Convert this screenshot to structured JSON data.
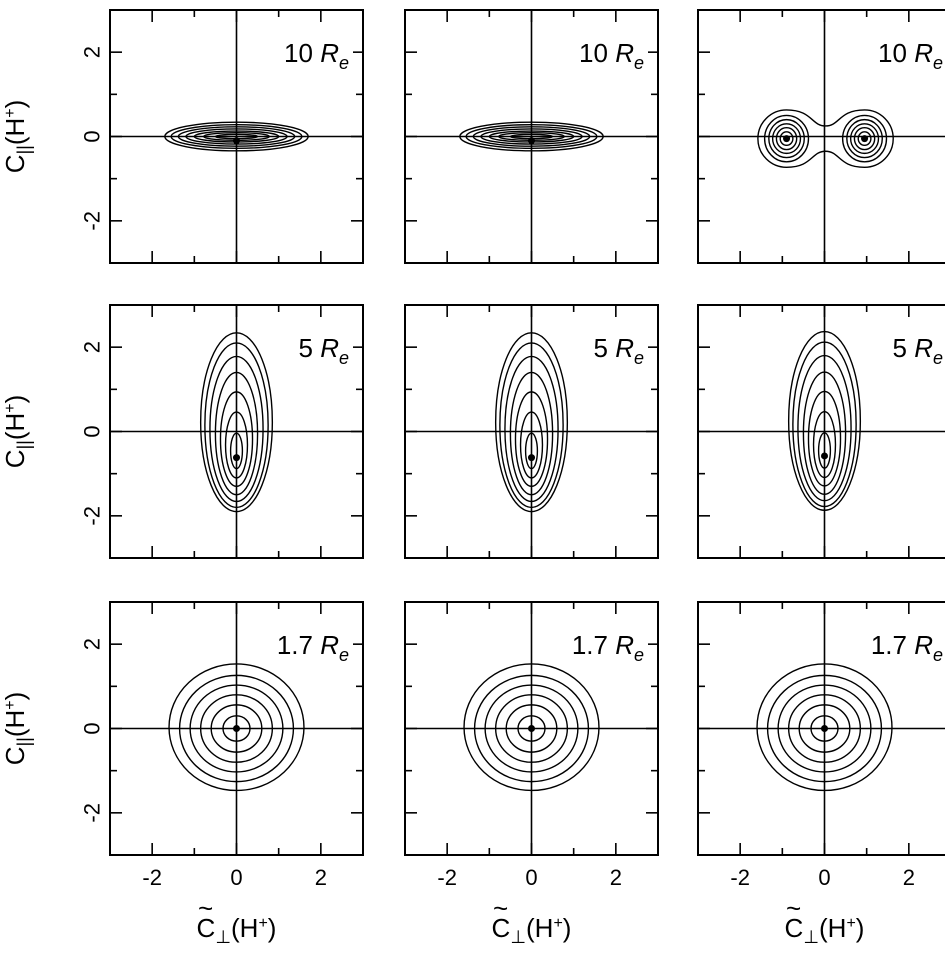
{
  "chart_data": [
    {
      "type": "contour",
      "row": 0,
      "col": 0,
      "distance_label": "10",
      "distance_unit": "R",
      "distance_sub": "e",
      "xlim": [
        -3,
        3
      ],
      "ylim": [
        -3,
        3
      ],
      "peak": [
        0,
        -0.1
      ],
      "shape": "disk",
      "contours": [
        {
          "rx": 1.7,
          "ry": 0.34
        },
        {
          "rx": 1.55,
          "ry": 0.28
        },
        {
          "rx": 1.38,
          "ry": 0.23
        },
        {
          "rx": 1.2,
          "ry": 0.18
        },
        {
          "rx": 1.0,
          "ry": 0.13
        },
        {
          "rx": 0.78,
          "ry": 0.09
        },
        {
          "rx": 0.5,
          "ry": 0.05
        }
      ]
    },
    {
      "type": "contour",
      "row": 0,
      "col": 1,
      "distance_label": "10",
      "distance_unit": "R",
      "distance_sub": "e",
      "xlim": [
        -3,
        3
      ],
      "ylim": [
        -3,
        3
      ],
      "peak": [
        0,
        -0.1
      ],
      "shape": "disk",
      "contours": [
        {
          "rx": 1.7,
          "ry": 0.34
        },
        {
          "rx": 1.55,
          "ry": 0.28
        },
        {
          "rx": 1.38,
          "ry": 0.23
        },
        {
          "rx": 1.2,
          "ry": 0.18
        },
        {
          "rx": 1.0,
          "ry": 0.13
        },
        {
          "rx": 0.78,
          "ry": 0.09
        },
        {
          "rx": 0.5,
          "ry": 0.05
        }
      ]
    },
    {
      "type": "contour",
      "row": 0,
      "col": 2,
      "distance_label": "10",
      "distance_unit": "R",
      "distance_sub": "e",
      "xlim": [
        -3,
        3
      ],
      "ylim": [
        -3,
        3
      ],
      "peaks": [
        [
          -0.9,
          -0.05
        ],
        [
          0.95,
          -0.05
        ]
      ],
      "shape": "double",
      "contours": [
        {
          "rx": 0.52,
          "ry": 0.55
        },
        {
          "rx": 0.42,
          "ry": 0.45
        },
        {
          "rx": 0.33,
          "ry": 0.35
        },
        {
          "rx": 0.24,
          "ry": 0.26
        },
        {
          "rx": 0.15,
          "ry": 0.16
        }
      ]
    },
    {
      "type": "contour",
      "row": 1,
      "col": 0,
      "distance_label": "5",
      "distance_unit": "R",
      "distance_sub": "e",
      "xlim": [
        -3,
        3
      ],
      "ylim": [
        -3,
        3
      ],
      "peak": [
        0,
        -0.62
      ],
      "shape": "elongated",
      "contours": [
        {
          "rx": 0.85,
          "ry": 2.12,
          "cy": 0.22
        },
        {
          "rx": 0.75,
          "ry": 1.95,
          "cy": 0.15
        },
        {
          "rx": 0.63,
          "ry": 1.72,
          "cy": 0.06
        },
        {
          "rx": 0.5,
          "ry": 1.45,
          "cy": -0.05
        },
        {
          "rx": 0.38,
          "ry": 1.12,
          "cy": -0.18
        },
        {
          "rx": 0.26,
          "ry": 0.78,
          "cy": -0.32
        },
        {
          "rx": 0.14,
          "ry": 0.42,
          "cy": -0.46
        }
      ]
    },
    {
      "type": "contour",
      "row": 1,
      "col": 1,
      "distance_label": "5",
      "distance_unit": "R",
      "distance_sub": "e",
      "xlim": [
        -3,
        3
      ],
      "ylim": [
        -3,
        3
      ],
      "peak": [
        0,
        -0.62
      ],
      "shape": "elongated",
      "contours": [
        {
          "rx": 0.85,
          "ry": 2.12,
          "cy": 0.22
        },
        {
          "rx": 0.75,
          "ry": 1.95,
          "cy": 0.15
        },
        {
          "rx": 0.63,
          "ry": 1.72,
          "cy": 0.06
        },
        {
          "rx": 0.5,
          "ry": 1.45,
          "cy": -0.05
        },
        {
          "rx": 0.38,
          "ry": 1.12,
          "cy": -0.18
        },
        {
          "rx": 0.26,
          "ry": 0.78,
          "cy": -0.32
        },
        {
          "rx": 0.14,
          "ry": 0.42,
          "cy": -0.46
        }
      ]
    },
    {
      "type": "contour",
      "row": 1,
      "col": 2,
      "distance_label": "5",
      "distance_unit": "R",
      "distance_sub": "e",
      "xlim": [
        -3,
        3
      ],
      "ylim": [
        -3,
        3
      ],
      "peak": [
        0,
        -0.58
      ],
      "shape": "elongated",
      "contours": [
        {
          "rx": 0.85,
          "ry": 2.12,
          "cy": 0.25
        },
        {
          "rx": 0.75,
          "ry": 1.95,
          "cy": 0.17
        },
        {
          "rx": 0.63,
          "ry": 1.72,
          "cy": 0.08
        },
        {
          "rx": 0.5,
          "ry": 1.45,
          "cy": -0.04
        },
        {
          "rx": 0.38,
          "ry": 1.12,
          "cy": -0.17
        },
        {
          "rx": 0.26,
          "ry": 0.78,
          "cy": -0.31
        },
        {
          "rx": 0.14,
          "ry": 0.42,
          "cy": -0.45
        }
      ]
    },
    {
      "type": "contour",
      "row": 2,
      "col": 0,
      "distance_label": "1.7",
      "distance_unit": "R",
      "distance_sub": "e",
      "xlim": [
        -3,
        3
      ],
      "ylim": [
        -3,
        3
      ],
      "peak": [
        0,
        0
      ],
      "shape": "round",
      "contours": [
        {
          "rx": 1.6,
          "ry": 1.5,
          "cy": 0.03
        },
        {
          "rx": 1.35,
          "ry": 1.26
        },
        {
          "rx": 1.1,
          "ry": 1.03
        },
        {
          "rx": 0.85,
          "ry": 0.8
        },
        {
          "rx": 0.6,
          "ry": 0.56
        },
        {
          "rx": 0.32,
          "ry": 0.3
        }
      ]
    },
    {
      "type": "contour",
      "row": 2,
      "col": 1,
      "distance_label": "1.7",
      "distance_unit": "R",
      "distance_sub": "e",
      "xlim": [
        -3,
        3
      ],
      "ylim": [
        -3,
        3
      ],
      "peak": [
        0,
        0
      ],
      "shape": "round",
      "contours": [
        {
          "rx": 1.6,
          "ry": 1.5,
          "cy": 0.03
        },
        {
          "rx": 1.35,
          "ry": 1.26
        },
        {
          "rx": 1.1,
          "ry": 1.03
        },
        {
          "rx": 0.85,
          "ry": 0.8
        },
        {
          "rx": 0.6,
          "ry": 0.56
        },
        {
          "rx": 0.32,
          "ry": 0.3
        }
      ]
    },
    {
      "type": "contour",
      "row": 2,
      "col": 2,
      "distance_label": "1.7",
      "distance_unit": "R",
      "distance_sub": "e",
      "xlim": [
        -3,
        3
      ],
      "ylim": [
        -3,
        3
      ],
      "peak": [
        0,
        0
      ],
      "shape": "round",
      "contours": [
        {
          "rx": 1.6,
          "ry": 1.5,
          "cy": 0.03
        },
        {
          "rx": 1.35,
          "ry": 1.26
        },
        {
          "rx": 1.1,
          "ry": 1.03
        },
        {
          "rx": 0.85,
          "ry": 0.8
        },
        {
          "rx": 0.6,
          "ry": 0.56
        },
        {
          "rx": 0.32,
          "ry": 0.3
        }
      ]
    }
  ],
  "axes": {
    "x_ticks": [
      -2,
      0,
      2
    ],
    "y_ticks": [
      2,
      0,
      -2
    ],
    "x_tick_labels": [
      "-2",
      "0",
      "2"
    ],
    "y_tick_labels": [
      "2",
      "0",
      "-2"
    ],
    "xlabel_main": "C",
    "xlabel_sub": "⊥",
    "xlabel_tail": "(H",
    "xlabel_sup": "+",
    "xlabel_close": ")",
    "ylabel_main": "C",
    "ylabel_sub": "||",
    "ylabel_tail": "(H",
    "ylabel_sup": "+",
    "ylabel_close": ")",
    "tilde": "~"
  }
}
